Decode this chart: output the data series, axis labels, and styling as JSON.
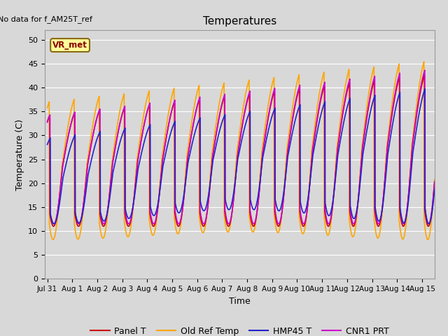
{
  "title": "Temperatures",
  "xlabel": "Time",
  "ylabel": "Temperature (C)",
  "note": "No data for f_AM25T_ref",
  "annotation": "VR_met",
  "ylim": [
    0,
    52
  ],
  "yticks": [
    0,
    5,
    10,
    15,
    20,
    25,
    30,
    35,
    40,
    45,
    50
  ],
  "xtick_labels": [
    "Jul 31",
    "Aug 1",
    "Aug 2",
    "Aug 3",
    "Aug 4",
    "Aug 5",
    "Aug 6",
    "Aug 7",
    "Aug 8",
    "Aug 9",
    "Aug 10",
    "Aug 11",
    "Aug 12",
    "Aug 13",
    "Aug 14",
    "Aug 15"
  ],
  "series": {
    "Panel_T": {
      "color": "#cc0000",
      "label": "Panel T",
      "lw": 1.2
    },
    "Old_Ref_Temp": {
      "color": "#ffa500",
      "label": "Old Ref Temp",
      "lw": 1.2
    },
    "HMP45_T": {
      "color": "#2222cc",
      "label": "HMP45 T",
      "lw": 1.2
    },
    "CNR1_PRT": {
      "color": "#cc00cc",
      "label": "CNR1 PRT",
      "lw": 1.2
    }
  },
  "bg_color": "#d8d8d8",
  "plot_bg": "#d8d8d8",
  "grid_color": "#ffffff",
  "figsize": [
    6.4,
    4.8
  ],
  "dpi": 100
}
